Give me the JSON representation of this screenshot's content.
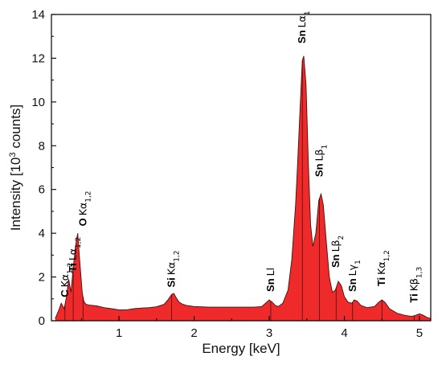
{
  "chart_data": {
    "type": "area",
    "xlabel": "Energy [keV]",
    "ylabel": "Intensity [10^3 counts]",
    "ylabel_parts": {
      "pre": "Intensity [10",
      "sup": "3",
      "post": " counts]"
    },
    "xlim": [
      0.1,
      5.15
    ],
    "ylim": [
      0,
      14
    ],
    "x_ticks": [
      1,
      2,
      3,
      4,
      5
    ],
    "y_ticks": [
      0,
      2,
      4,
      6,
      8,
      10,
      12,
      14
    ],
    "fill_color": "#ee2a2a",
    "line_color": "#4a0f0f",
    "grid": false,
    "series": [
      {
        "x": [
          0.15,
          0.2,
          0.23,
          0.27,
          0.3,
          0.33,
          0.36,
          0.39,
          0.42,
          0.45,
          0.48,
          0.51,
          0.53,
          0.56,
          0.6,
          0.65,
          0.7,
          0.8,
          0.9,
          1.0,
          1.1,
          1.2,
          1.3,
          1.4,
          1.5,
          1.6,
          1.65,
          1.7,
          1.73,
          1.76,
          1.8,
          1.85,
          1.9,
          2.0,
          2.2,
          2.4,
          2.6,
          2.8,
          2.9,
          2.95,
          3.0,
          3.04,
          3.08,
          3.12,
          3.18,
          3.25,
          3.3,
          3.35,
          3.38,
          3.41,
          3.44,
          3.46,
          3.49,
          3.52,
          3.55,
          3.58,
          3.62,
          3.66,
          3.69,
          3.72,
          3.76,
          3.8,
          3.84,
          3.88,
          3.92,
          3.96,
          4.0,
          4.05,
          4.1,
          4.13,
          4.17,
          4.22,
          4.3,
          4.4,
          4.46,
          4.5,
          4.54,
          4.6,
          4.7,
          4.8,
          4.9,
          4.95,
          5.0,
          5.05,
          5.1,
          5.15
        ],
        "y": [
          0.1,
          0.5,
          0.8,
          0.55,
          1.1,
          1.9,
          1.3,
          2.4,
          3.4,
          4.0,
          2.6,
          1.3,
          0.9,
          0.75,
          0.72,
          0.7,
          0.68,
          0.6,
          0.55,
          0.5,
          0.5,
          0.55,
          0.58,
          0.6,
          0.64,
          0.75,
          0.95,
          1.2,
          1.25,
          1.05,
          0.85,
          0.75,
          0.7,
          0.65,
          0.62,
          0.62,
          0.62,
          0.62,
          0.65,
          0.8,
          0.95,
          0.85,
          0.7,
          0.65,
          0.8,
          1.4,
          2.8,
          5.3,
          7.4,
          9.7,
          11.9,
          12.1,
          10.8,
          7.2,
          4.4,
          3.4,
          4.0,
          5.5,
          5.8,
          5.3,
          3.6,
          2.0,
          1.3,
          1.4,
          1.8,
          1.6,
          1.1,
          0.85,
          0.8,
          0.95,
          0.9,
          0.7,
          0.6,
          0.65,
          0.85,
          0.95,
          0.85,
          0.55,
          0.35,
          0.25,
          0.2,
          0.25,
          0.32,
          0.25,
          0.15,
          0.1
        ]
      }
    ],
    "annotations": [
      {
        "element": "C",
        "line": "Kα",
        "sub": "1,2",
        "x": 0.28,
        "y": 1.0
      },
      {
        "element": "Ti",
        "line": "Lα",
        "sub": "1,2",
        "x": 0.39,
        "y": 2.15
      },
      {
        "element": "O",
        "line": "Kα",
        "sub": "1,2",
        "x": 0.52,
        "y": 4.25
      },
      {
        "element": "Si",
        "line": "Kα",
        "sub": "1,2",
        "x": 1.7,
        "y": 1.45
      },
      {
        "element": "Sn",
        "line": "Ll",
        "sub": "",
        "x": 3.02,
        "y": 1.25
      },
      {
        "element": "Sn",
        "line": "Lα",
        "sub": "1",
        "x": 3.44,
        "y": 12.6
      },
      {
        "element": "Sn",
        "line": "Lβ",
        "sub": "1",
        "x": 3.67,
        "y": 6.5
      },
      {
        "element": "Sn",
        "line": "Lβ",
        "sub": "2",
        "x": 3.89,
        "y": 2.35
      },
      {
        "element": "Sn",
        "line": "Lγ",
        "sub": "1",
        "x": 4.11,
        "y": 1.25
      },
      {
        "element": "Ti",
        "line": "Kα",
        "sub": "1,2",
        "x": 4.5,
        "y": 1.5
      },
      {
        "element": "Ti",
        "line": "Kβ",
        "sub": "1,3",
        "x": 4.93,
        "y": 0.75
      }
    ]
  }
}
